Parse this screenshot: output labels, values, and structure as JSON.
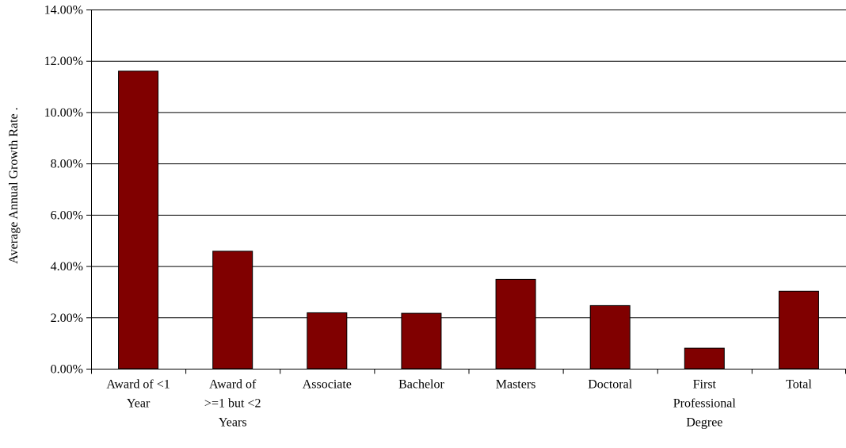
{
  "chart_data": {
    "type": "bar",
    "title": "",
    "xlabel": "",
    "ylabel": "Average Annual Growth Rate",
    "ylabel_suffix": ".",
    "categories": [
      [
        "Award of <1",
        "Year"
      ],
      [
        "Award of",
        ">=1 but <2",
        "Years"
      ],
      [
        "Associate"
      ],
      [
        "Bachelor"
      ],
      [
        "Masters"
      ],
      [
        "Doctoral"
      ],
      [
        "First",
        "Professional",
        "Degree"
      ],
      [
        "Total"
      ]
    ],
    "values": [
      11.6,
      4.58,
      2.18,
      2.16,
      3.48,
      2.46,
      0.8,
      3.02
    ],
    "ylim": [
      0,
      14
    ],
    "yticks": [
      0,
      2,
      4,
      6,
      8,
      10,
      12,
      14
    ],
    "ytick_labels": [
      "0.00%",
      "2.00%",
      "4.00%",
      "6.00%",
      "8.00%",
      "10.00%",
      "12.00%",
      "14.00%"
    ],
    "grid": true,
    "legend": "none",
    "colors": {
      "bar_fill": "#800000",
      "bar_stroke": "#000000",
      "grid": "#000000",
      "axis": "#000000"
    }
  }
}
